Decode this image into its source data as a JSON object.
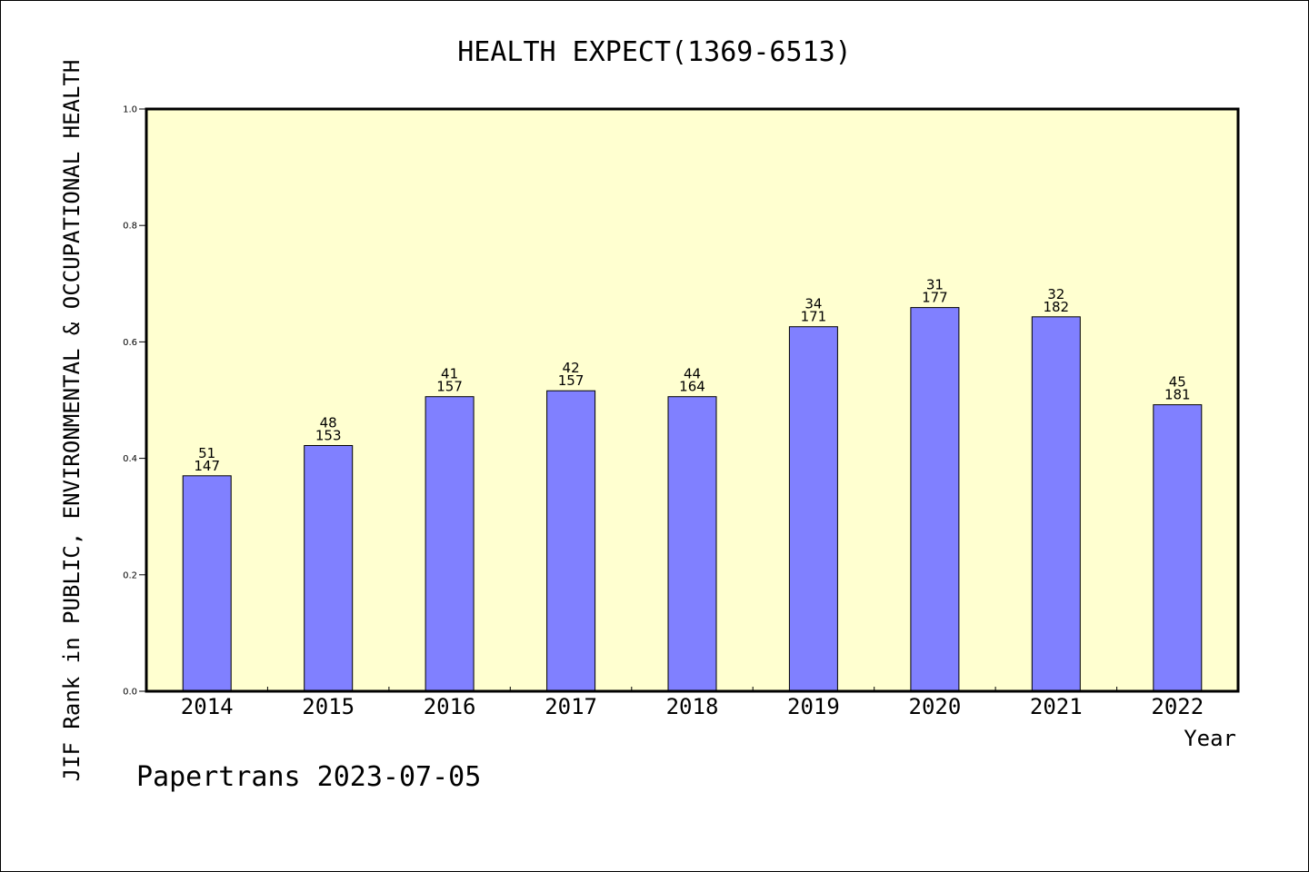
{
  "chart_data": {
    "type": "bar",
    "title": "HEALTH EXPECT(1369-6513)",
    "xlabel": "Year",
    "ylabel": "JIF Rank in PUBLIC, ENVIRONMENTAL & OCCUPATIONAL HEALTH",
    "categories": [
      "2014",
      "2015",
      "2016",
      "2017",
      "2018",
      "2019",
      "2020",
      "2021",
      "2022"
    ],
    "values": [
      0.37,
      0.422,
      0.506,
      0.516,
      0.506,
      0.626,
      0.659,
      0.643,
      0.492
    ],
    "rank": [
      "51",
      "48",
      "41",
      "42",
      "44",
      "34",
      "31",
      "32",
      "45"
    ],
    "total": [
      "147",
      "153",
      "157",
      "157",
      "164",
      "171",
      "177",
      "182",
      "181"
    ],
    "ylim": [
      0,
      1.0
    ],
    "yticks": [
      "0.0",
      "0.2",
      "0.4",
      "0.6",
      "0.8",
      "1.0"
    ],
    "grid": false,
    "colors": {
      "plot_background": "#ffffd0",
      "bar": "#8080ff"
    }
  },
  "footer": "Papertrans 2023-07-05"
}
